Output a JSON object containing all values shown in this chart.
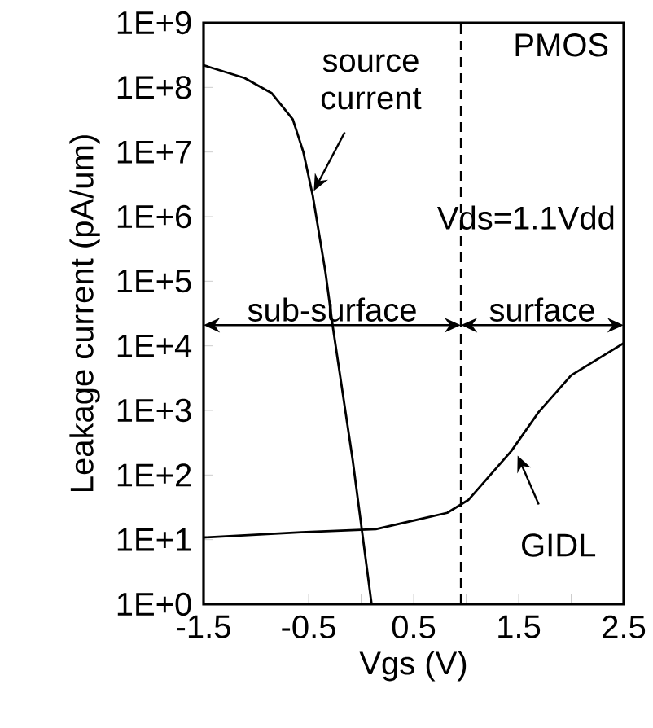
{
  "chart_data": {
    "type": "line",
    "xlabel": "Vgs (V)",
    "ylabel": "Leakage current (pA/um)",
    "log": "y",
    "grid": false,
    "marker": "none",
    "line_style": "solid",
    "xlim": [
      -1.5,
      2.5
    ],
    "ylim": [
      1,
      1000000000
    ],
    "xticks": [
      -1.5,
      {
        "value": -1,
        "label": null
      },
      -0.5,
      {
        "value": 0,
        "label": null
      },
      0.5,
      {
        "value": 1,
        "label": null
      },
      1.5,
      {
        "value": 2,
        "label": null
      },
      2.5
    ],
    "yticks": [
      {
        "value": 1,
        "label": "1E+0"
      },
      {
        "value": 10,
        "label": "1E+1"
      },
      {
        "value": 100,
        "label": "1E+2"
      },
      {
        "value": 1000,
        "label": "1E+3"
      },
      {
        "value": 10000,
        "label": "1E+4"
      },
      {
        "value": 100000,
        "label": "1E+5"
      },
      {
        "value": 1000000,
        "label": "1E+6"
      },
      {
        "value": 10000000,
        "label": "1E+7"
      },
      {
        "value": 100000000,
        "label": "1E+8"
      },
      {
        "value": 1000000000,
        "label": "1E+9"
      }
    ],
    "series": [
      {
        "color": "#000000",
        "x": [
          -1.5,
          -1.11,
          -0.85,
          -0.65,
          -0.55,
          -0.46,
          -0.34,
          -0.27,
          -0.08,
          0.1
        ],
        "values": [
          220000000,
          140000000,
          81000000,
          32000000,
          10000000,
          2100000,
          140000,
          20000,
          170,
          1
        ]
      },
      {
        "color": "#000000",
        "x": [
          -1.5,
          -0.57,
          0.14,
          0.82,
          1.02,
          1.43,
          1.69,
          2.0,
          2.5
        ],
        "values": [
          10.8,
          13,
          14.5,
          26,
          41,
          235,
          940,
          3500,
          11000
        ]
      }
    ],
    "ref_lines": [
      {
        "axis": "x",
        "value": 0.95,
        "line_style": "dashed"
      }
    ],
    "annotations": [
      {
        "text": "source current",
        "x": -0.45,
        "y": 2500000
      },
      {
        "text": "GIDL",
        "x": 1.49,
        "y": 200
      },
      "PMOS",
      "Vds=1.1Vdd",
      "sub-surface",
      "surface"
    ]
  }
}
